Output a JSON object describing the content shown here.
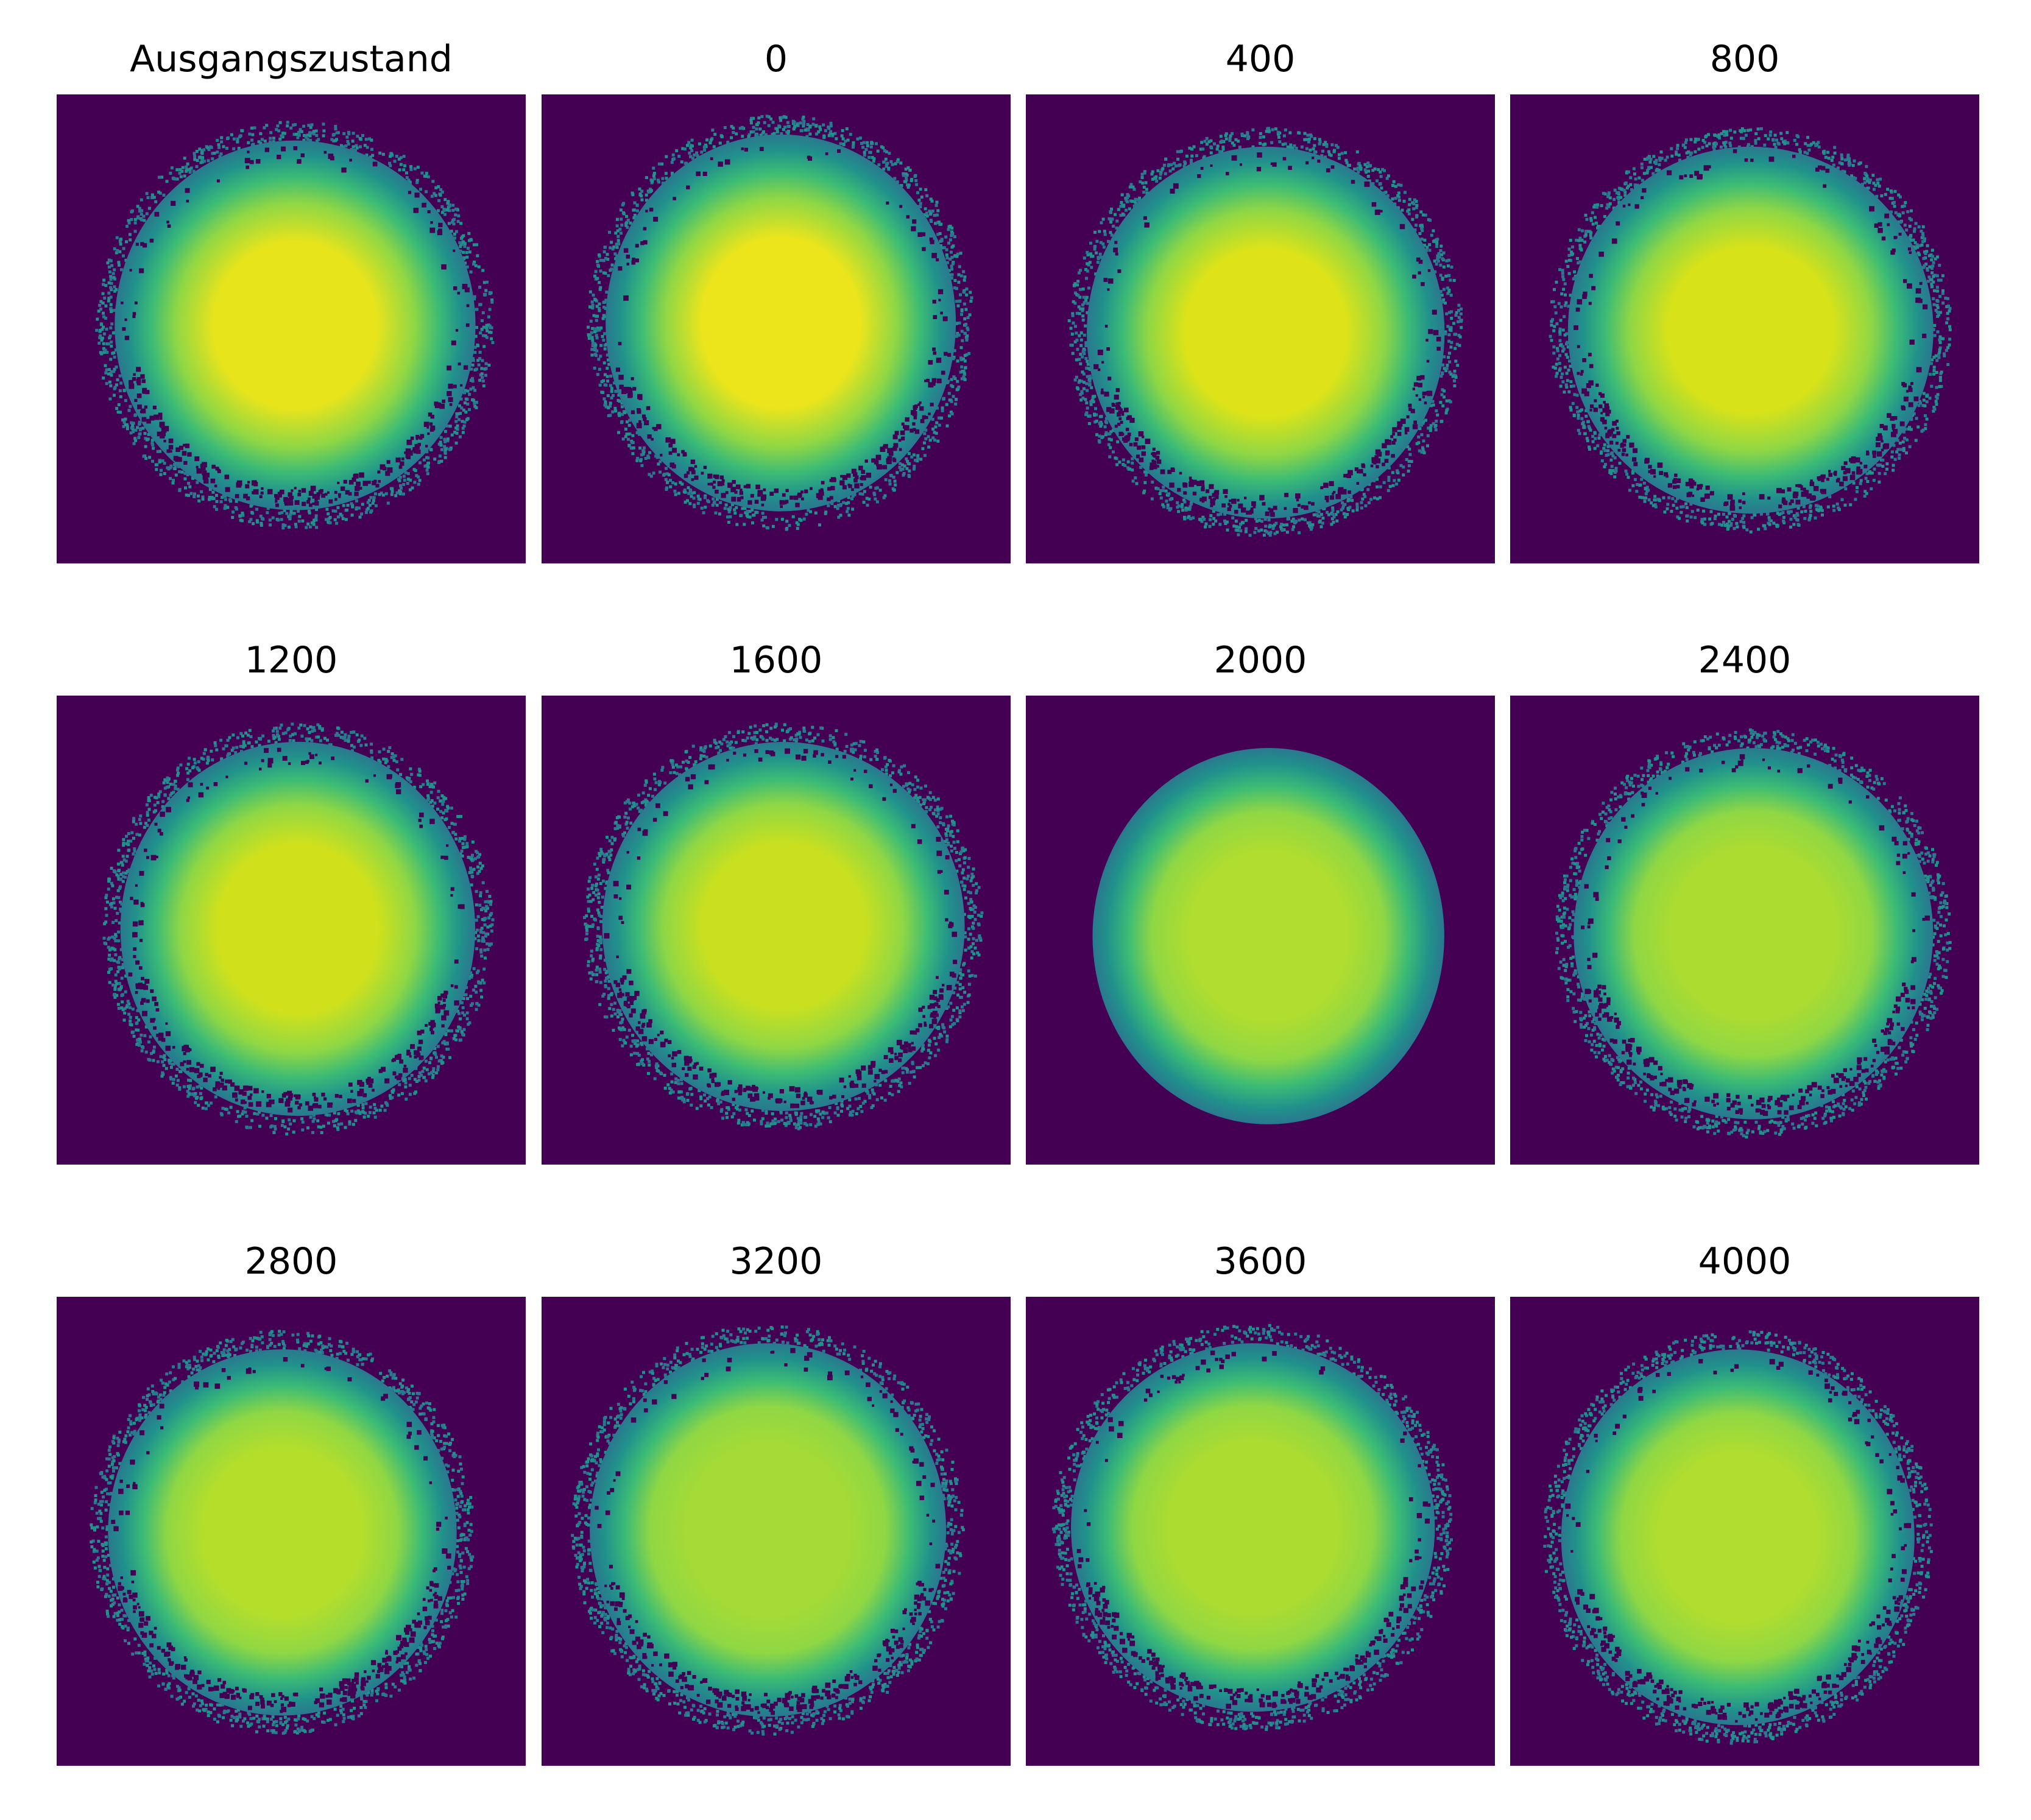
{
  "figure": {
    "background_color": "#440154",
    "colormap": "viridis",
    "panels": [
      {
        "title": "Ausgangszustand",
        "center_color": "#e8e41c",
        "edge": "speckled"
      },
      {
        "title": "0",
        "center_color": "#ece51b",
        "edge": "speckled"
      },
      {
        "title": "400",
        "center_color": "#dde318",
        "edge": "speckled"
      },
      {
        "title": "800",
        "center_color": "#d8e219",
        "edge": "speckled"
      },
      {
        "title": "1200",
        "center_color": "#d0e11c",
        "edge": "speckled"
      },
      {
        "title": "1600",
        "center_color": "#c8e020",
        "edge": "speckled"
      },
      {
        "title": "2000",
        "center_color": "#b0dd2f",
        "edge": "smooth"
      },
      {
        "title": "2400",
        "center_color": "#addc30",
        "edge": "speckled"
      },
      {
        "title": "2800",
        "center_color": "#b5de2b",
        "edge": "speckled"
      },
      {
        "title": "3200",
        "center_color": "#a5db36",
        "edge": "speckled"
      },
      {
        "title": "3600",
        "center_color": "#addc30",
        "edge": "speckled"
      },
      {
        "title": "4000",
        "center_color": "#b0dd2f",
        "edge": "speckled"
      }
    ]
  }
}
